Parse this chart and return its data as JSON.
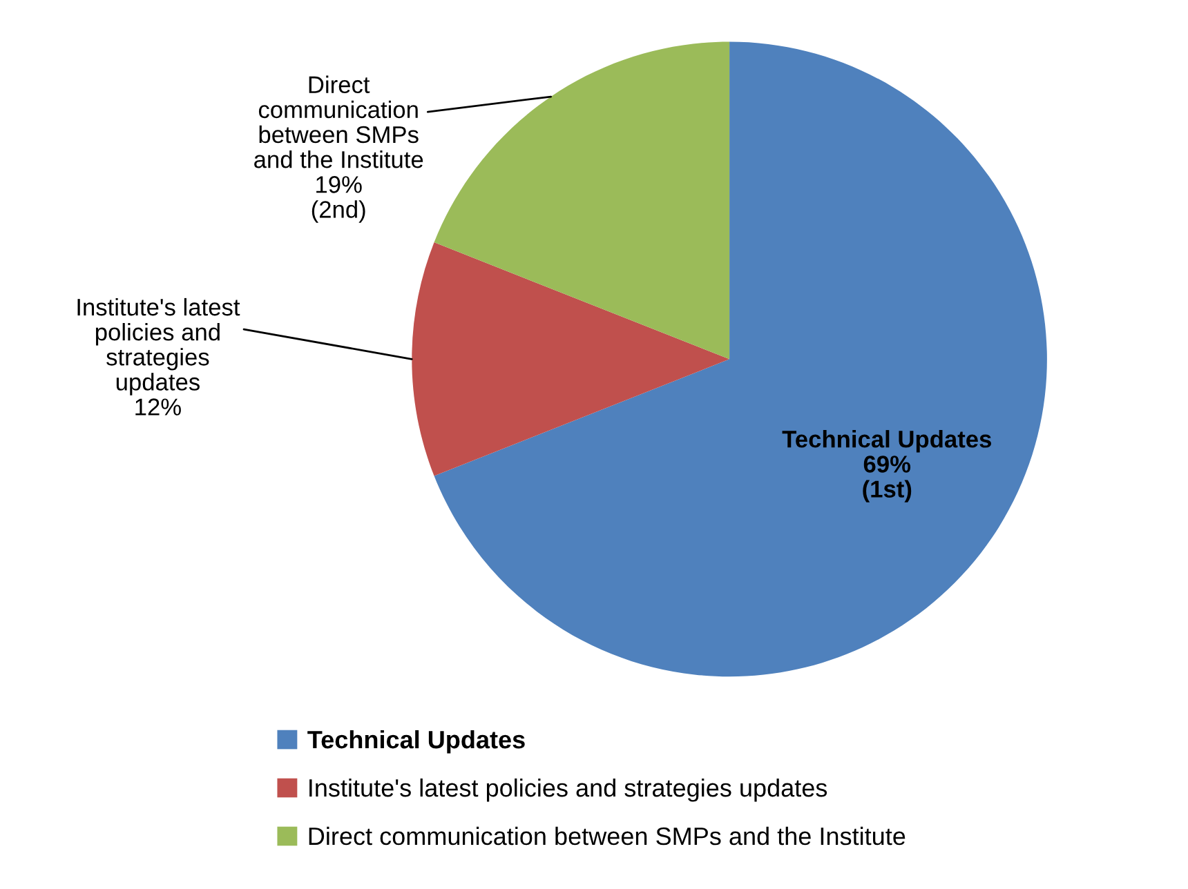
{
  "chart_data": {
    "type": "pie",
    "categories": [
      "Technical Updates",
      "Institute's latest policies and strategies updates",
      "Direct communication between SMPs and the Institute"
    ],
    "values": [
      69,
      12,
      19
    ],
    "colors": [
      "#4f81bd",
      "#c0504d",
      "#9bbb59"
    ],
    "value_labels": [
      "Technical Updates\n69%\n(1st)",
      "Institute's latest\npolicies and\nstrategies\nupdates\n12%",
      "Direct\ncommunication\nbetween SMPs\nand the Institute\n19%\n(2nd)"
    ],
    "legend": "bottom"
  }
}
